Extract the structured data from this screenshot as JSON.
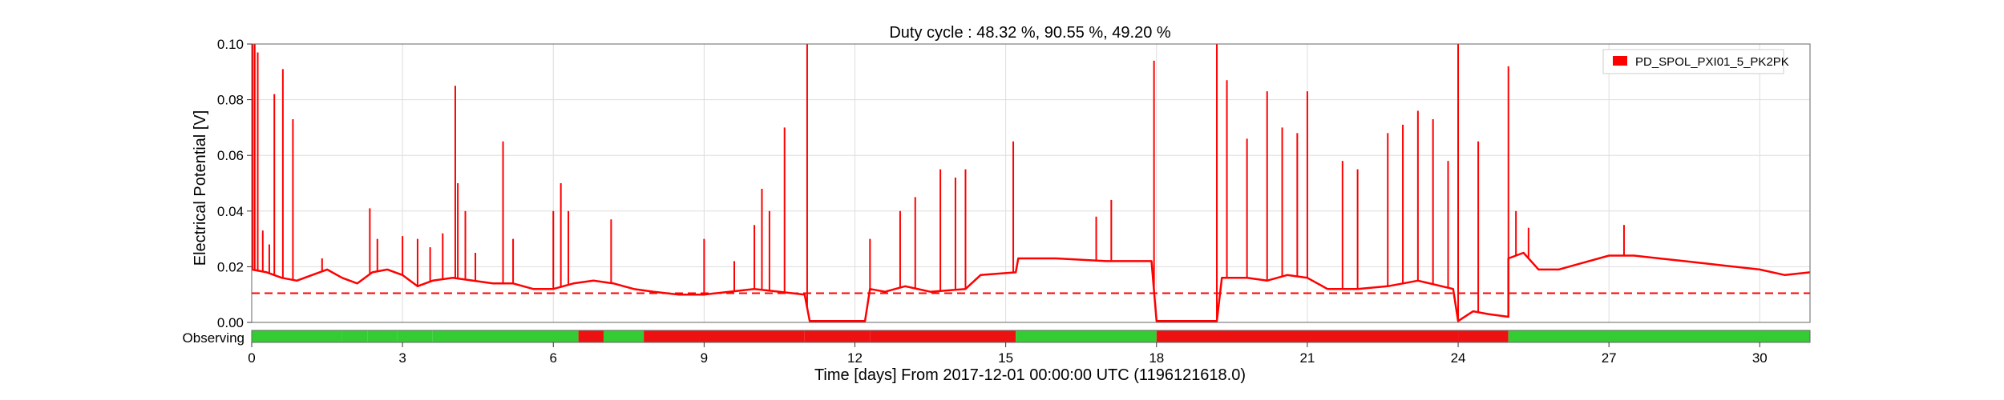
{
  "chart_data": {
    "type": "line",
    "title": "Duty cycle : 48.32 %, 90.55 %, 49.20 %",
    "xlabel": "Time [days] From 2017-12-01 00:00:00 UTC (1196121618.0)",
    "ylabel": "Electrical Potential [V]",
    "xlim": [
      0,
      31
    ],
    "ylim": [
      0,
      0.1
    ],
    "x_ticks": [
      0,
      3,
      6,
      9,
      12,
      15,
      18,
      21,
      24,
      27,
      30
    ],
    "x_tick_labels": [
      "0",
      "3",
      "6",
      "9",
      "12",
      "15",
      "18",
      "21",
      "24",
      "27",
      "30"
    ],
    "y_ticks": [
      0,
      0.02,
      0.04,
      0.06,
      0.08,
      0.1
    ],
    "y_tick_labels": [
      "0.00",
      "0.02",
      "0.04",
      "0.06",
      "0.08",
      "0.10"
    ],
    "grid": true,
    "legend_position": "top-right",
    "threshold": {
      "value": 0.0105,
      "style": "dashed"
    },
    "series": [
      {
        "name": "PD_SPOL_PXI01_5_PK2PK",
        "color": "#ff0000",
        "baseline": [
          [
            0,
            0.019
          ],
          [
            0.3,
            0.018
          ],
          [
            0.6,
            0.016
          ],
          [
            0.9,
            0.015
          ],
          [
            1.2,
            0.017
          ],
          [
            1.5,
            0.019
          ],
          [
            1.8,
            0.016
          ],
          [
            2.1,
            0.014
          ],
          [
            2.4,
            0.018
          ],
          [
            2.7,
            0.019
          ],
          [
            3.0,
            0.017
          ],
          [
            3.3,
            0.013
          ],
          [
            3.6,
            0.015
          ],
          [
            4.0,
            0.016
          ],
          [
            4.4,
            0.015
          ],
          [
            4.8,
            0.014
          ],
          [
            5.2,
            0.014
          ],
          [
            5.6,
            0.012
          ],
          [
            6.0,
            0.012
          ],
          [
            6.4,
            0.014
          ],
          [
            6.8,
            0.015
          ],
          [
            7.2,
            0.014
          ],
          [
            7.6,
            0.012
          ],
          [
            8.0,
            0.011
          ],
          [
            8.5,
            0.01
          ],
          [
            9.0,
            0.01
          ],
          [
            9.5,
            0.011
          ],
          [
            10.0,
            0.012
          ],
          [
            10.5,
            0.011
          ],
          [
            11.0,
            0.01
          ],
          [
            11.1,
            0.0005
          ],
          [
            12.2,
            0.0005
          ],
          [
            12.3,
            0.012
          ],
          [
            12.6,
            0.011
          ],
          [
            13.0,
            0.013
          ],
          [
            13.5,
            0.011
          ],
          [
            14.2,
            0.012
          ],
          [
            14.5,
            0.017
          ],
          [
            15.2,
            0.018
          ],
          [
            15.25,
            0.023
          ],
          [
            16.0,
            0.023
          ],
          [
            17.0,
            0.022
          ],
          [
            17.9,
            0.022
          ],
          [
            18.0,
            0.0005
          ],
          [
            19.2,
            0.0005
          ],
          [
            19.3,
            0.016
          ],
          [
            19.8,
            0.016
          ],
          [
            20.2,
            0.015
          ],
          [
            20.6,
            0.017
          ],
          [
            21.0,
            0.016
          ],
          [
            21.4,
            0.012
          ],
          [
            22.0,
            0.012
          ],
          [
            22.6,
            0.013
          ],
          [
            23.2,
            0.015
          ],
          [
            23.9,
            0.012
          ],
          [
            24.0,
            0.0005
          ],
          [
            24.3,
            0.004
          ],
          [
            24.6,
            0.003
          ],
          [
            25.0,
            0.002
          ],
          [
            25.0,
            0.023
          ],
          [
            25.3,
            0.025
          ],
          [
            25.6,
            0.019
          ],
          [
            26.0,
            0.019
          ],
          [
            26.4,
            0.021
          ],
          [
            27.0,
            0.024
          ],
          [
            27.5,
            0.024
          ],
          [
            28.0,
            0.023
          ],
          [
            28.5,
            0.022
          ],
          [
            29.0,
            0.021
          ],
          [
            29.5,
            0.02
          ],
          [
            30.0,
            0.019
          ],
          [
            30.5,
            0.017
          ],
          [
            31.0,
            0.018
          ]
        ],
        "spikes": [
          [
            0.02,
            0.1
          ],
          [
            0.06,
            0.1
          ],
          [
            0.12,
            0.097
          ],
          [
            0.22,
            0.033
          ],
          [
            0.35,
            0.028
          ],
          [
            0.45,
            0.082
          ],
          [
            0.62,
            0.091
          ],
          [
            0.82,
            0.073
          ],
          [
            1.4,
            0.023
          ],
          [
            2.35,
            0.041
          ],
          [
            2.5,
            0.03
          ],
          [
            3.0,
            0.031
          ],
          [
            3.3,
            0.03
          ],
          [
            3.55,
            0.027
          ],
          [
            3.8,
            0.032
          ],
          [
            4.05,
            0.085
          ],
          [
            4.1,
            0.05
          ],
          [
            4.25,
            0.04
          ],
          [
            4.45,
            0.025
          ],
          [
            5.0,
            0.065
          ],
          [
            5.2,
            0.03
          ],
          [
            6.0,
            0.04
          ],
          [
            6.15,
            0.05
          ],
          [
            6.3,
            0.04
          ],
          [
            7.15,
            0.037
          ],
          [
            9.0,
            0.03
          ],
          [
            9.6,
            0.022
          ],
          [
            10.0,
            0.035
          ],
          [
            10.15,
            0.048
          ],
          [
            10.3,
            0.04
          ],
          [
            10.6,
            0.07
          ],
          [
            11.05,
            0.1
          ],
          [
            12.3,
            0.03
          ],
          [
            12.9,
            0.04
          ],
          [
            13.2,
            0.045
          ],
          [
            13.7,
            0.055
          ],
          [
            14.0,
            0.052
          ],
          [
            14.2,
            0.055
          ],
          [
            15.15,
            0.065
          ],
          [
            16.8,
            0.038
          ],
          [
            17.1,
            0.044
          ],
          [
            17.95,
            0.094
          ],
          [
            19.2,
            0.1
          ],
          [
            19.4,
            0.087
          ],
          [
            19.8,
            0.066
          ],
          [
            20.2,
            0.083
          ],
          [
            20.5,
            0.07
          ],
          [
            20.8,
            0.068
          ],
          [
            21.0,
            0.083
          ],
          [
            21.7,
            0.058
          ],
          [
            22.0,
            0.055
          ],
          [
            22.6,
            0.068
          ],
          [
            22.9,
            0.071
          ],
          [
            23.2,
            0.076
          ],
          [
            23.5,
            0.073
          ],
          [
            23.8,
            0.058
          ],
          [
            24.0,
            0.1
          ],
          [
            24.4,
            0.065
          ],
          [
            25.0,
            0.092
          ],
          [
            25.15,
            0.04
          ],
          [
            25.4,
            0.034
          ],
          [
            27.3,
            0.035
          ]
        ]
      }
    ],
    "segment_bar": {
      "label": "Observing",
      "on_color": "#33cc33",
      "off_color": "#ee1111",
      "segments": [
        [
          0,
          1.8,
          "on"
        ],
        [
          1.8,
          2.3,
          "on"
        ],
        [
          2.3,
          2.9,
          "on"
        ],
        [
          2.9,
          3.6,
          "on"
        ],
        [
          3.6,
          6.5,
          "on"
        ],
        [
          6.5,
          7.0,
          "off"
        ],
        [
          7.0,
          7.8,
          "on"
        ],
        [
          7.8,
          11.0,
          "off"
        ],
        [
          11.0,
          12.3,
          "off"
        ],
        [
          12.3,
          15.2,
          "off"
        ],
        [
          15.2,
          18.0,
          "on"
        ],
        [
          18.0,
          24.0,
          "off"
        ],
        [
          24.0,
          25.0,
          "off"
        ],
        [
          25.0,
          31.0,
          "on"
        ]
      ]
    }
  }
}
